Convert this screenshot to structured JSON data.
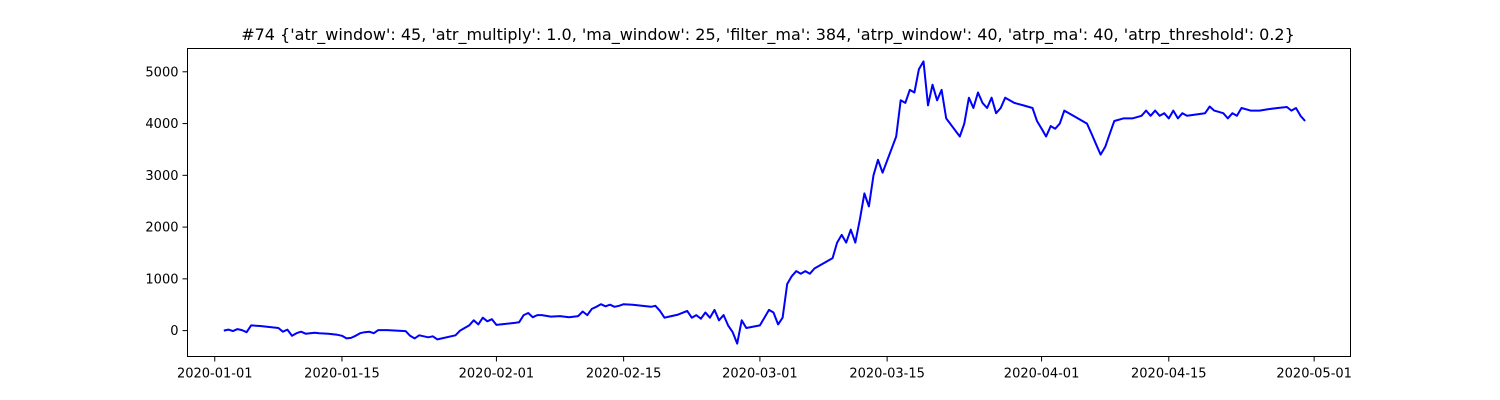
{
  "chart_data": {
    "type": "line",
    "title": "#74 {'atr_window': 45, 'atr_multiply': 1.0, 'ma_window': 25, 'filter_ma': 384, 'atrp_window': 40, 'atrp_ma': 40, 'atrp_threshold': 0.2}",
    "xlabel": "",
    "ylabel": "",
    "x_ticks": [
      "2020-01-01",
      "2020-01-15",
      "2020-02-01",
      "2020-02-15",
      "2020-03-01",
      "2020-03-15",
      "2020-04-01",
      "2020-04-15",
      "2020-05-01"
    ],
    "y_ticks": [
      0,
      1000,
      2000,
      3000,
      4000,
      5000
    ],
    "xlim": [
      "2019-12-29",
      "2020-05-05"
    ],
    "ylim": [
      -500,
      5450
    ],
    "grid": false,
    "color": "#0000ff",
    "series": [
      {
        "points": [
          [
            "2020-01-02",
            0
          ],
          [
            "2020-01-02 12:00",
            20
          ],
          [
            "2020-01-03",
            -10
          ],
          [
            "2020-01-03 12:00",
            30
          ],
          [
            "2020-01-04",
            10
          ],
          [
            "2020-01-04 12:00",
            -30
          ],
          [
            "2020-01-05",
            100
          ],
          [
            "2020-01-06",
            90
          ],
          [
            "2020-01-07",
            70
          ],
          [
            "2020-01-08",
            50
          ],
          [
            "2020-01-08 12:00",
            -20
          ],
          [
            "2020-01-09",
            20
          ],
          [
            "2020-01-09 12:00",
            -100
          ],
          [
            "2020-01-10",
            -50
          ],
          [
            "2020-01-10 12:00",
            -20
          ],
          [
            "2020-01-11",
            -60
          ],
          [
            "2020-01-12",
            -40
          ],
          [
            "2020-01-12 12:00",
            -50
          ],
          [
            "2020-01-13 12:00",
            -60
          ],
          [
            "2020-01-14 12:00",
            -80
          ],
          [
            "2020-01-15",
            -100
          ],
          [
            "2020-01-15 12:00",
            -150
          ],
          [
            "2020-01-16",
            -140
          ],
          [
            "2020-01-16 12:00",
            -100
          ],
          [
            "2020-01-17",
            -50
          ],
          [
            "2020-01-17 12:00",
            -30
          ],
          [
            "2020-01-18",
            -20
          ],
          [
            "2020-01-18 12:00",
            -50
          ],
          [
            "2020-01-19",
            10
          ],
          [
            "2020-01-20",
            10
          ],
          [
            "2020-01-21",
            0
          ],
          [
            "2020-01-22",
            -10
          ],
          [
            "2020-01-22 12:00",
            -100
          ],
          [
            "2020-01-23",
            -150
          ],
          [
            "2020-01-23 12:00",
            -90
          ],
          [
            "2020-01-24",
            -110
          ],
          [
            "2020-01-24 12:00",
            -130
          ],
          [
            "2020-01-25",
            -110
          ],
          [
            "2020-01-25 12:00",
            -170
          ],
          [
            "2020-01-27 12:00",
            -90
          ],
          [
            "2020-01-28",
            0
          ],
          [
            "2020-01-28 12:00",
            50
          ],
          [
            "2020-01-29",
            100
          ],
          [
            "2020-01-29 12:00",
            200
          ],
          [
            "2020-01-30",
            120
          ],
          [
            "2020-01-30 12:00",
            250
          ],
          [
            "2020-01-31",
            180
          ],
          [
            "2020-01-31 12:00",
            220
          ],
          [
            "2020-02-01",
            110
          ],
          [
            "2020-02-02",
            130
          ],
          [
            "2020-02-03",
            150
          ],
          [
            "2020-02-03 12:00",
            160
          ],
          [
            "2020-02-04",
            300
          ],
          [
            "2020-02-04 12:00",
            340
          ],
          [
            "2020-02-05",
            260
          ],
          [
            "2020-02-05 12:00",
            300
          ],
          [
            "2020-02-06",
            300
          ],
          [
            "2020-02-07",
            270
          ],
          [
            "2020-02-08",
            280
          ],
          [
            "2020-02-09",
            260
          ],
          [
            "2020-02-10",
            280
          ],
          [
            "2020-02-10 12:00",
            370
          ],
          [
            "2020-02-11",
            300
          ],
          [
            "2020-02-11 12:00",
            420
          ],
          [
            "2020-02-12",
            460
          ],
          [
            "2020-02-12 12:00",
            510
          ],
          [
            "2020-02-13",
            470
          ],
          [
            "2020-02-13 12:00",
            500
          ],
          [
            "2020-02-14",
            460
          ],
          [
            "2020-02-14 12:00",
            480
          ],
          [
            "2020-02-15",
            510
          ],
          [
            "2020-02-16",
            500
          ],
          [
            "2020-02-17",
            480
          ],
          [
            "2020-02-18",
            460
          ],
          [
            "2020-02-18 12:00",
            480
          ],
          [
            "2020-02-19",
            380
          ],
          [
            "2020-02-19 12:00",
            250
          ],
          [
            "2020-02-20",
            270
          ],
          [
            "2020-02-21",
            310
          ],
          [
            "2020-02-22",
            380
          ],
          [
            "2020-02-22 12:00",
            250
          ],
          [
            "2020-02-23",
            300
          ],
          [
            "2020-02-23 12:00",
            230
          ],
          [
            "2020-02-24",
            350
          ],
          [
            "2020-02-24 12:00",
            250
          ],
          [
            "2020-02-25",
            400
          ],
          [
            "2020-02-25 12:00",
            200
          ],
          [
            "2020-02-26",
            300
          ],
          [
            "2020-02-26 12:00",
            100
          ],
          [
            "2020-02-27",
            -30
          ],
          [
            "2020-02-27 12:00",
            -250
          ],
          [
            "2020-02-28",
            200
          ],
          [
            "2020-02-28 12:00",
            50
          ],
          [
            "2020-03-01",
            100
          ],
          [
            "2020-03-02",
            400
          ],
          [
            "2020-03-02 12:00",
            350
          ],
          [
            "2020-03-03",
            120
          ],
          [
            "2020-03-03 12:00",
            250
          ],
          [
            "2020-03-04",
            900
          ],
          [
            "2020-03-04 12:00",
            1050
          ],
          [
            "2020-03-05",
            1150
          ],
          [
            "2020-03-05 12:00",
            1100
          ],
          [
            "2020-03-06",
            1150
          ],
          [
            "2020-03-06 12:00",
            1100
          ],
          [
            "2020-03-07",
            1200
          ],
          [
            "2020-03-09",
            1400
          ],
          [
            "2020-03-09 12:00",
            1700
          ],
          [
            "2020-03-10",
            1850
          ],
          [
            "2020-03-10 12:00",
            1700
          ],
          [
            "2020-03-11",
            1950
          ],
          [
            "2020-03-11 12:00",
            1700
          ],
          [
            "2020-03-12",
            2150
          ],
          [
            "2020-03-12 12:00",
            2650
          ],
          [
            "2020-03-13",
            2400
          ],
          [
            "2020-03-13 12:00",
            3000
          ],
          [
            "2020-03-14",
            3300
          ],
          [
            "2020-03-14 12:00",
            3050
          ],
          [
            "2020-03-16",
            3750
          ],
          [
            "2020-03-16 12:00",
            4450
          ],
          [
            "2020-03-17",
            4400
          ],
          [
            "2020-03-17 12:00",
            4650
          ],
          [
            "2020-03-18",
            4600
          ],
          [
            "2020-03-18 12:00",
            5050
          ],
          [
            "2020-03-19",
            5200
          ],
          [
            "2020-03-19 12:00",
            4350
          ],
          [
            "2020-03-20",
            4750
          ],
          [
            "2020-03-20 12:00",
            4450
          ],
          [
            "2020-03-21",
            4650
          ],
          [
            "2020-03-21 12:00",
            4100
          ],
          [
            "2020-03-23",
            3750
          ],
          [
            "2020-03-23 12:00",
            4000
          ],
          [
            "2020-03-24",
            4500
          ],
          [
            "2020-03-24 12:00",
            4300
          ],
          [
            "2020-03-25",
            4600
          ],
          [
            "2020-03-25 12:00",
            4400
          ],
          [
            "2020-03-26",
            4300
          ],
          [
            "2020-03-26 12:00",
            4500
          ],
          [
            "2020-03-27",
            4200
          ],
          [
            "2020-03-27 12:00",
            4300
          ],
          [
            "2020-03-28",
            4500
          ],
          [
            "2020-03-29",
            4400
          ],
          [
            "2020-03-30",
            4350
          ],
          [
            "2020-03-31",
            4300
          ],
          [
            "2020-03-31 12:00",
            4050
          ],
          [
            "2020-04-01",
            3900
          ],
          [
            "2020-04-01 12:00",
            3750
          ],
          [
            "2020-04-02",
            3950
          ],
          [
            "2020-04-02 12:00",
            3900
          ],
          [
            "2020-04-03",
            4000
          ],
          [
            "2020-04-03 12:00",
            4250
          ],
          [
            "2020-04-05",
            4100
          ],
          [
            "2020-04-06",
            4000
          ],
          [
            "2020-04-06 12:00",
            3800
          ],
          [
            "2020-04-07",
            3600
          ],
          [
            "2020-04-07 12:00",
            3400
          ],
          [
            "2020-04-08",
            3550
          ],
          [
            "2020-04-08 12:00",
            3800
          ],
          [
            "2020-04-09",
            4050
          ],
          [
            "2020-04-10",
            4100
          ],
          [
            "2020-04-11",
            4100
          ],
          [
            "2020-04-12",
            4150
          ],
          [
            "2020-04-12 12:00",
            4250
          ],
          [
            "2020-04-13",
            4150
          ],
          [
            "2020-04-13 12:00",
            4250
          ],
          [
            "2020-04-14",
            4150
          ],
          [
            "2020-04-14 12:00",
            4200
          ],
          [
            "2020-04-15",
            4100
          ],
          [
            "2020-04-15 12:00",
            4250
          ],
          [
            "2020-04-16",
            4100
          ],
          [
            "2020-04-16 12:00",
            4200
          ],
          [
            "2020-04-17",
            4150
          ],
          [
            "2020-04-19",
            4200
          ],
          [
            "2020-04-19 12:00",
            4330
          ],
          [
            "2020-04-20",
            4250
          ],
          [
            "2020-04-21",
            4200
          ],
          [
            "2020-04-21 12:00",
            4100
          ],
          [
            "2020-04-22",
            4200
          ],
          [
            "2020-04-22 12:00",
            4150
          ],
          [
            "2020-04-23",
            4300
          ],
          [
            "2020-04-24",
            4250
          ],
          [
            "2020-04-25",
            4250
          ],
          [
            "2020-04-26",
            4280
          ],
          [
            "2020-04-27",
            4300
          ],
          [
            "2020-04-28",
            4320
          ],
          [
            "2020-04-28 12:00",
            4250
          ],
          [
            "2020-04-29",
            4300
          ],
          [
            "2020-04-29 12:00",
            4150
          ],
          [
            "2020-04-30",
            4050
          ]
        ]
      }
    ]
  }
}
